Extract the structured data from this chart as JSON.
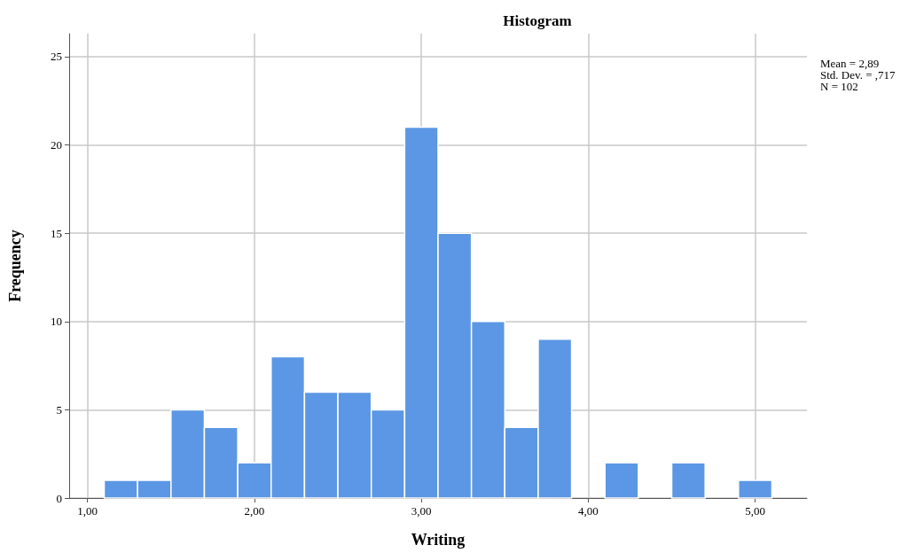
{
  "chart_data": {
    "type": "histogram",
    "title": "Histogram",
    "xlabel": "Writing",
    "ylabel": "Frequency",
    "bins": [
      1.1,
      1.3,
      1.5,
      1.7,
      1.9,
      2.1,
      2.3,
      2.5,
      2.7,
      2.9,
      3.1,
      3.3,
      3.5,
      3.7,
      3.9,
      4.1,
      4.3,
      4.5,
      4.7,
      4.9,
      5.1
    ],
    "values": [
      1,
      1,
      5,
      4,
      2,
      8,
      6,
      6,
      5,
      21,
      15,
      10,
      4,
      9,
      0,
      2,
      0,
      2,
      0,
      1
    ],
    "color": "#5b97e4",
    "xlim": [
      0.89,
      5.31
    ],
    "xticks": [
      {
        "value": 1,
        "label": "1,00"
      },
      {
        "value": 2,
        "label": "2,00"
      },
      {
        "value": 3,
        "label": "3,00"
      },
      {
        "value": 4,
        "label": "4,00"
      },
      {
        "value": 5,
        "label": "5,00"
      }
    ],
    "ylim": [
      0,
      26.3
    ],
    "yticks": [
      0,
      5,
      10,
      15,
      20,
      25
    ],
    "grid": true,
    "annotations": [
      "Mean = 2,89",
      "Std. Dev. = ,717",
      "N = 102"
    ]
  }
}
